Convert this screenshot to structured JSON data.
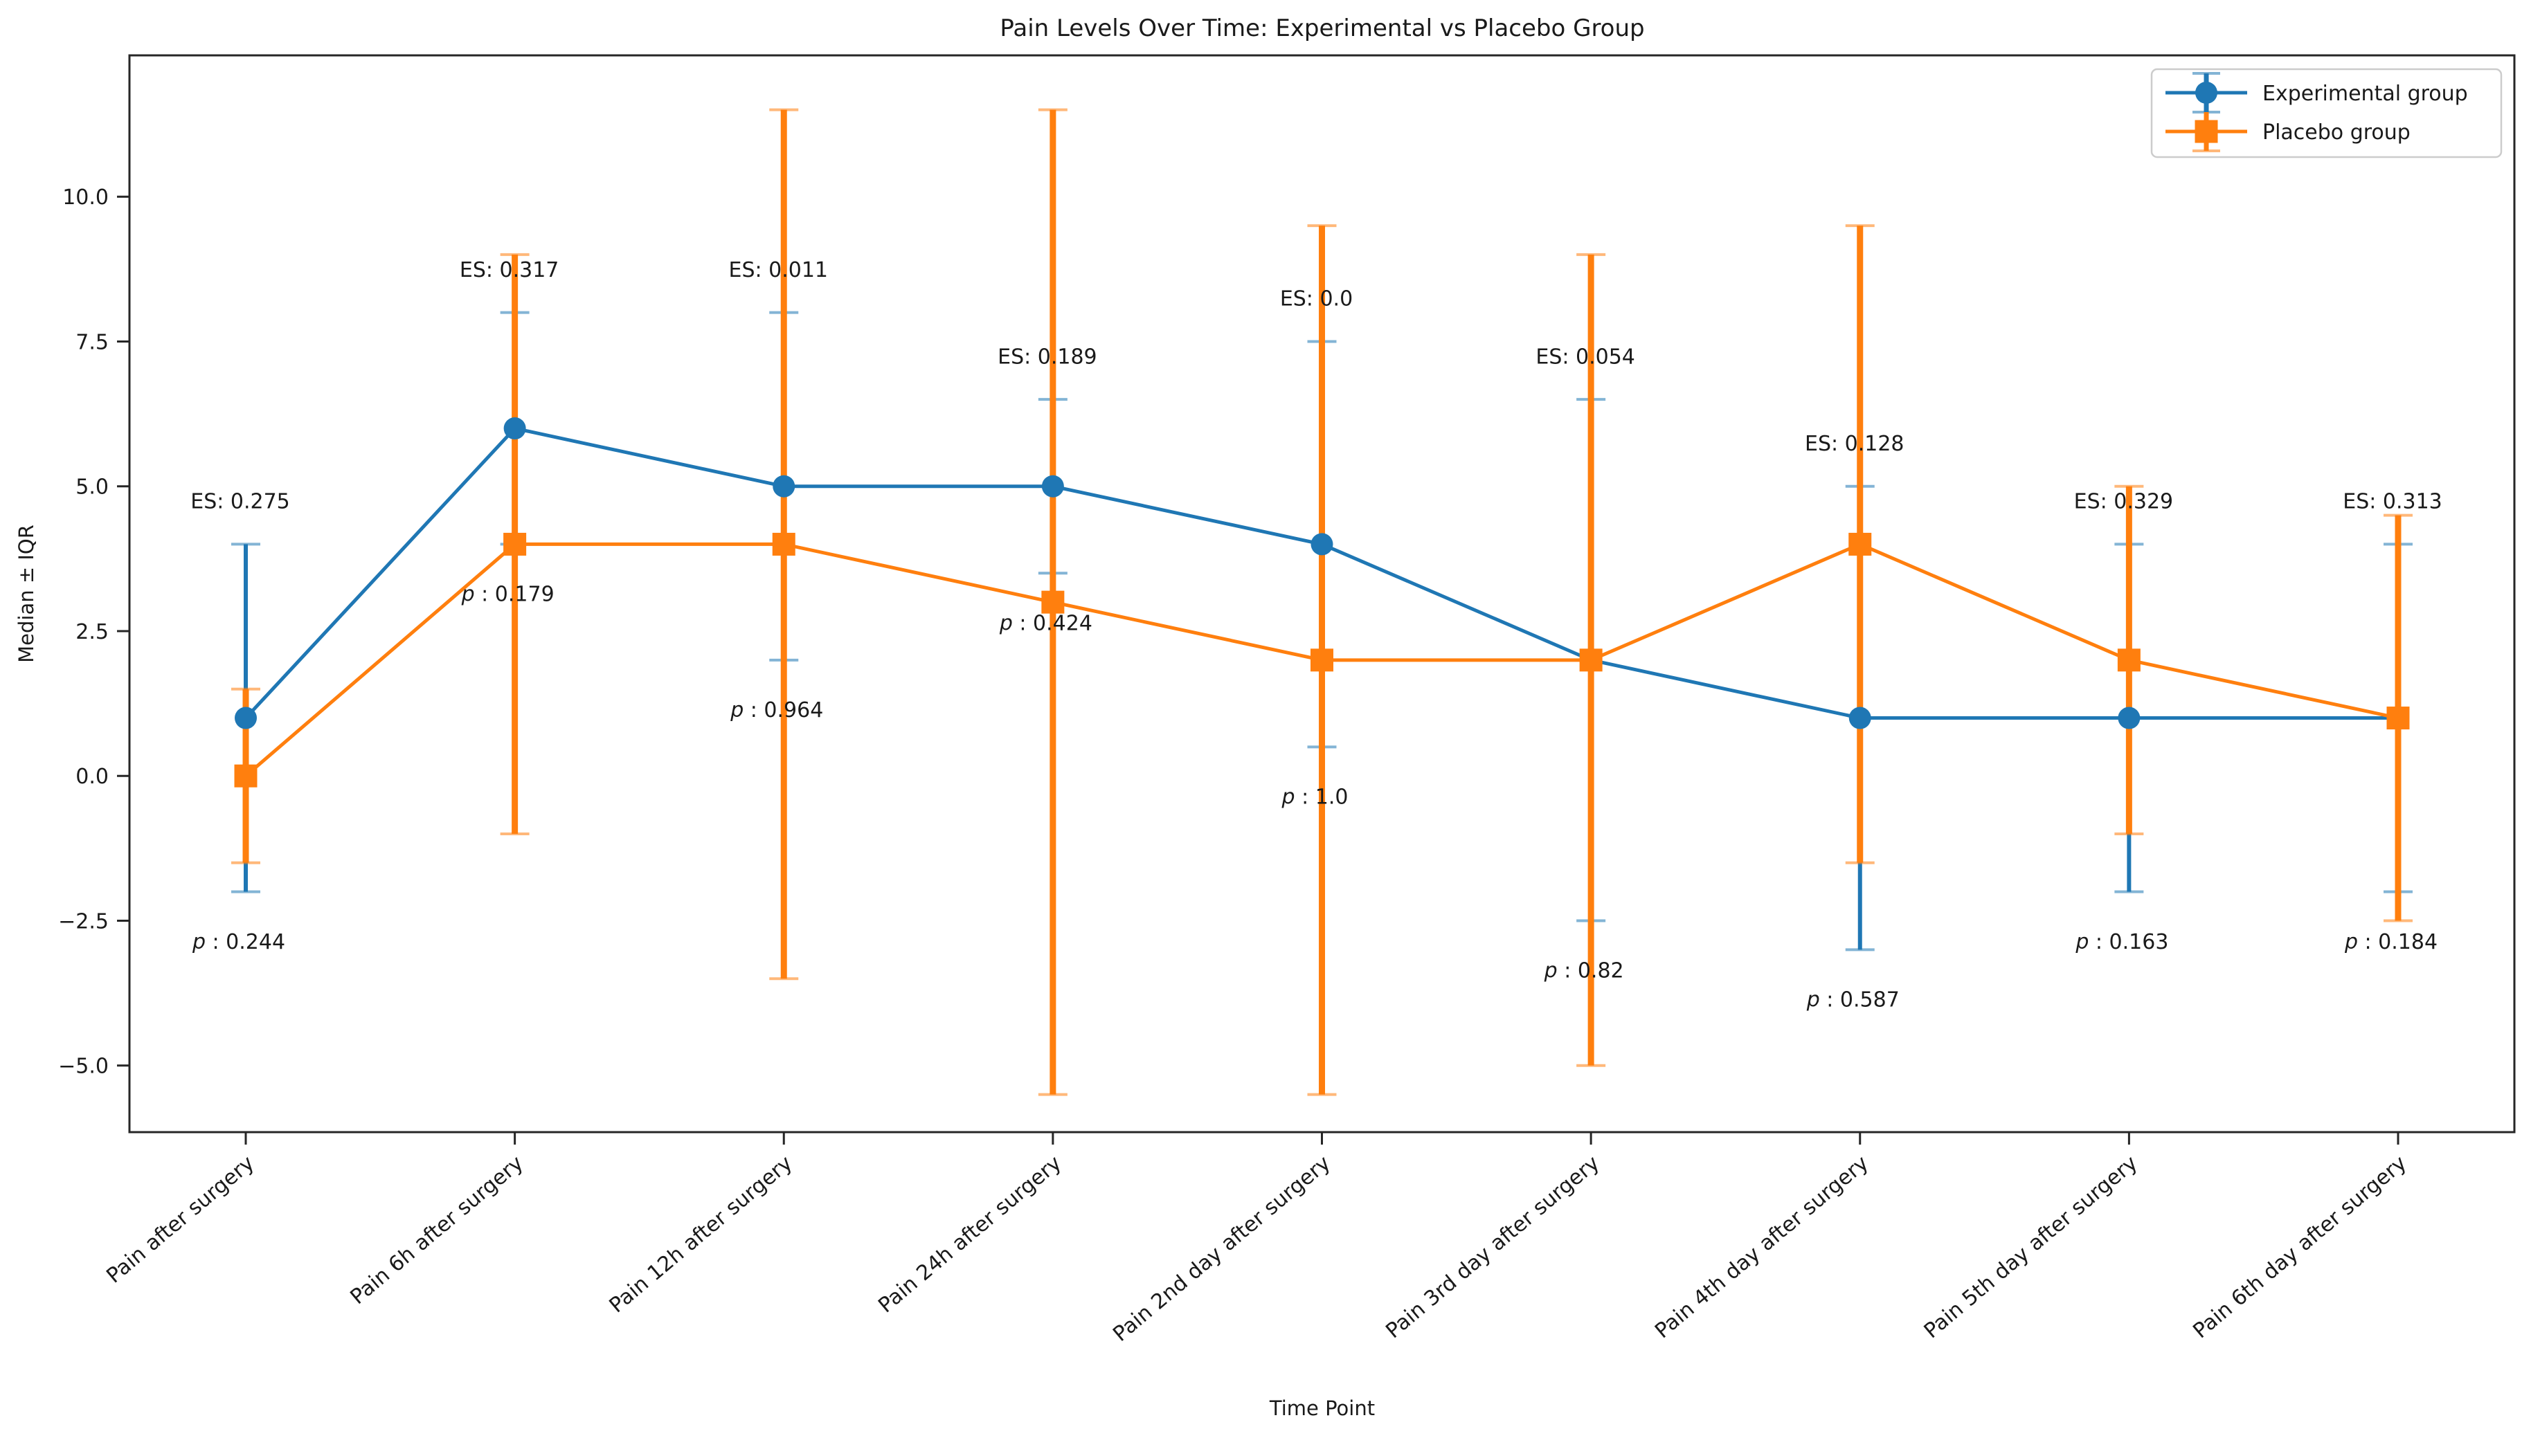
{
  "chart_data": {
    "type": "line",
    "title": "Pain Levels Over Time: Experimental vs Placebo Group",
    "xlabel": "Time Point",
    "ylabel": "Median ± IQR",
    "legend_position": "upper right",
    "grid": false,
    "ylim": [
      -6.15,
      12.44
    ],
    "yticks": [
      10.0,
      7.5,
      5.0,
      2.5,
      0.0,
      -2.5,
      -5.0
    ],
    "categories": [
      "Pain after surgery",
      "Pain 6h after surgery",
      "Pain 12h after surgery",
      "Pain 24h after surgery",
      "Pain 2nd day after surgery",
      "Pain 3rd day after surgery",
      "Pain 4th day after surgery",
      "Pain 5th day after surgery",
      "Pain 6th day after surgery"
    ],
    "series": [
      {
        "name": "Experimental group",
        "color": "#1f77b4",
        "marker": "circle",
        "medians": [
          1,
          6,
          5,
          5,
          4,
          2,
          1,
          1,
          1
        ],
        "iqr_low": [
          -2,
          4,
          2,
          3.5,
          0.5,
          -2.5,
          -3,
          -2,
          -2
        ],
        "iqr_high": [
          4,
          8,
          8,
          6.5,
          7.5,
          6.5,
          5,
          4,
          4
        ]
      },
      {
        "name": "Placebo group",
        "color": "#ff7f0e",
        "marker": "square",
        "medians": [
          0,
          4,
          4,
          3,
          2,
          2,
          4,
          2,
          1
        ],
        "iqr_low": [
          -1.5,
          -1,
          -3.5,
          -5.5,
          -5.5,
          -5,
          -1.5,
          -1,
          -2.5
        ],
        "iqr_high": [
          1.5,
          9,
          11.5,
          11.5,
          9.5,
          9,
          9.5,
          5,
          4.5
        ]
      }
    ],
    "annotations": {
      "es_label": "ES:",
      "p_label": "p",
      "p_separator": " : ",
      "effect_sizes": [
        "0.275",
        "0.317",
        "0.011",
        "0.189",
        "0.0",
        "0.054",
        "0.128",
        "0.329",
        "0.313"
      ],
      "p_values": [
        "0.244",
        "0.179",
        "0.964",
        "0.424",
        "1.0",
        "0.82",
        "0.587",
        "0.163",
        "0.184"
      ]
    }
  }
}
